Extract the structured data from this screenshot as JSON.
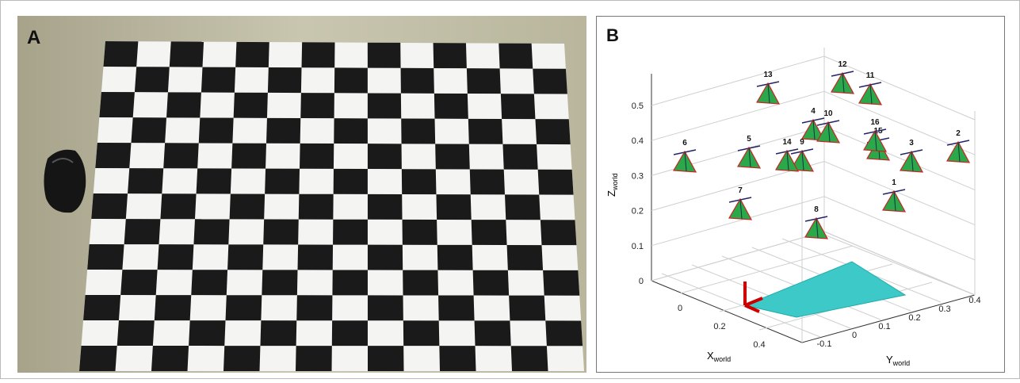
{
  "panel_a": {
    "label": "A"
  },
  "panel_b": {
    "label": "B",
    "z_axis": {
      "name": "Z",
      "subscript": "world",
      "ticks": [
        "0",
        "0.1",
        "0.2",
        "0.3",
        "0.4",
        "0.5"
      ]
    },
    "x_axis": {
      "name": "X",
      "subscript": "world",
      "ticks": [
        "0",
        "0.2",
        "0.4"
      ]
    },
    "y_axis": {
      "name": "Y",
      "subscript": "world",
      "ticks": [
        "-0.1",
        "0",
        "0.1",
        "0.2",
        "0.3",
        "0.4"
      ]
    },
    "cameras": [
      "1",
      "2",
      "3",
      "4",
      "5",
      "6",
      "7",
      "8",
      "9",
      "10",
      "11",
      "12",
      "13",
      "14",
      "15",
      "16"
    ]
  }
}
